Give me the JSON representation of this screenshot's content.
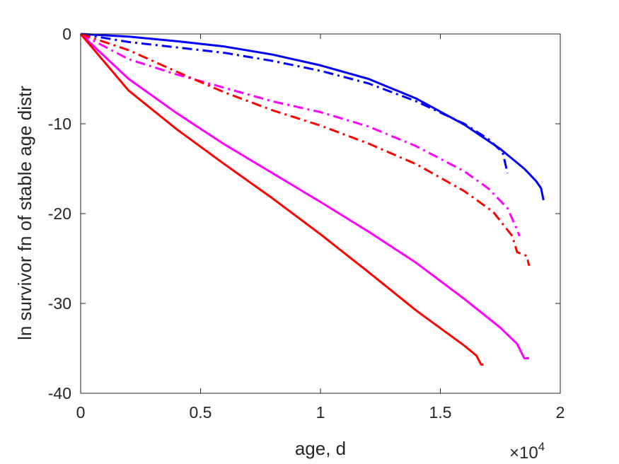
{
  "chart_data": {
    "type": "line",
    "xlabel": "age, d",
    "ylabel": "ln survivor fn of stable age distr",
    "x_multiplier": {
      "base": "×10",
      "exponent": "4"
    },
    "xlim": [
      0,
      2
    ],
    "ylim": [
      -40,
      0
    ],
    "x_ticks": [
      0,
      0.5,
      1,
      1.5,
      2
    ],
    "x_tick_labels": [
      "0",
      "0.5",
      "1",
      "1.5",
      "2"
    ],
    "y_ticks": [
      0,
      -10,
      -20,
      -30,
      -40
    ],
    "y_tick_labels": [
      "0",
      "-10",
      "-20",
      "-30",
      "-40"
    ],
    "grid": false,
    "legend": "none",
    "series": [
      {
        "color": "#0000ff",
        "style": "solid",
        "x": [
          0,
          0.2,
          0.4,
          0.6,
          0.8,
          1.0,
          1.2,
          1.4,
          1.6,
          1.75,
          1.85,
          1.9,
          1.92,
          1.93
        ],
        "y": [
          0,
          -0.3,
          -0.8,
          -1.4,
          -2.3,
          -3.5,
          -5.0,
          -7.2,
          -10.1,
          -12.8,
          -15.0,
          -16.4,
          -17.2,
          -18.5
        ]
      },
      {
        "color": "#0000ff",
        "style": "dashdot",
        "x": [
          0,
          0.2,
          0.4,
          0.6,
          0.8,
          1.0,
          1.2,
          1.4,
          1.6,
          1.7,
          1.76,
          1.78
        ],
        "y": [
          0,
          -0.9,
          -1.5,
          -2.1,
          -3.0,
          -4.1,
          -5.5,
          -7.5,
          -10.0,
          -11.7,
          -13.2,
          -15.5
        ]
      },
      {
        "color": "#ff00ff",
        "style": "dashdot",
        "x": [
          0,
          0.2,
          0.4,
          0.6,
          0.8,
          1.0,
          1.2,
          1.4,
          1.6,
          1.7,
          1.78,
          1.82,
          1.83
        ],
        "y": [
          0,
          -2.8,
          -4.5,
          -6.0,
          -7.5,
          -8.7,
          -10.3,
          -12.5,
          -15.3,
          -17.2,
          -19.4,
          -21.8,
          -22.5
        ]
      },
      {
        "color": "#ff0000",
        "style": "dashdot",
        "x": [
          0,
          0.2,
          0.4,
          0.6,
          0.8,
          1.0,
          1.2,
          1.4,
          1.6,
          1.72,
          1.8,
          1.82,
          1.86,
          1.87
        ],
        "y": [
          0,
          -1.8,
          -4.2,
          -6.5,
          -8.5,
          -10.2,
          -12.2,
          -14.5,
          -17.5,
          -19.8,
          -22.5,
          -24.3,
          -24.7,
          -25.8
        ]
      },
      {
        "color": "#ff00ff",
        "style": "solid",
        "x": [
          0,
          0.2,
          0.4,
          0.6,
          0.8,
          1.0,
          1.2,
          1.4,
          1.6,
          1.75,
          1.82,
          1.85,
          1.87
        ],
        "y": [
          0,
          -5.0,
          -8.8,
          -12.3,
          -15.5,
          -18.7,
          -22.0,
          -25.5,
          -29.5,
          -32.7,
          -34.5,
          -36.1,
          -36.1
        ]
      },
      {
        "color": "#ff0000",
        "style": "solid",
        "x": [
          0,
          0.2,
          0.4,
          0.6,
          0.8,
          1.0,
          1.2,
          1.4,
          1.6,
          1.65,
          1.67,
          1.68
        ],
        "y": [
          0,
          -6.3,
          -10.6,
          -14.5,
          -18.3,
          -22.3,
          -26.5,
          -30.8,
          -34.7,
          -35.8,
          -36.8,
          -36.8
        ]
      }
    ]
  }
}
